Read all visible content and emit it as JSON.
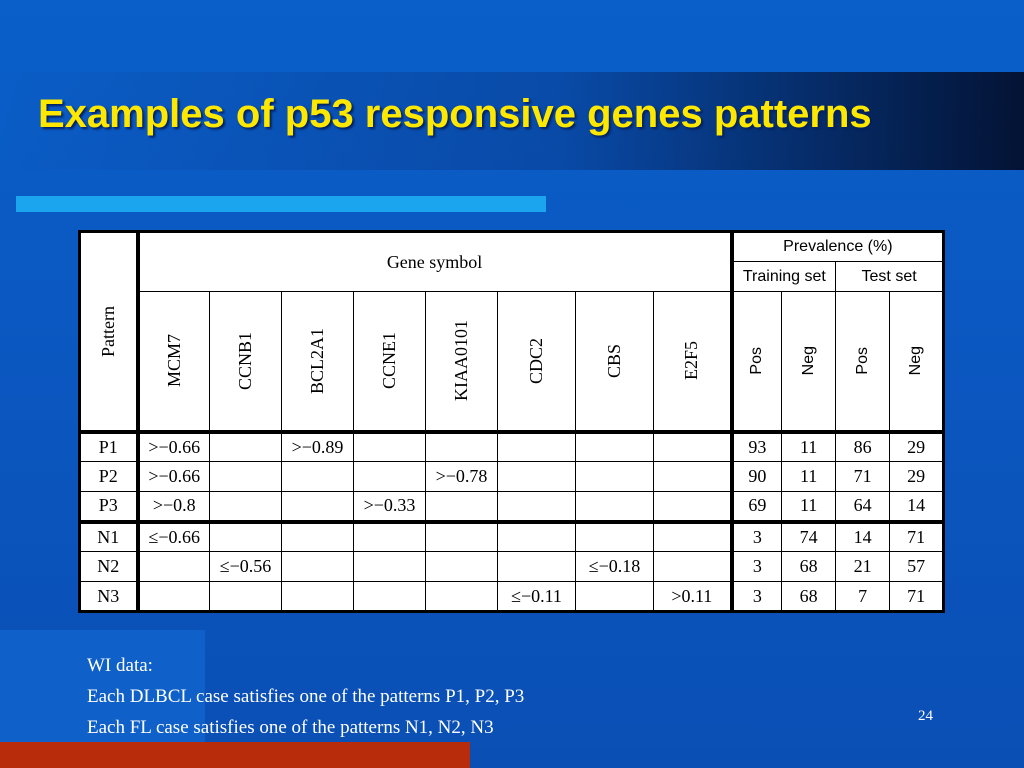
{
  "slide": {
    "title": "Examples of p53 responsive genes patterns",
    "number": "24",
    "colors": {
      "title": "#ffe800",
      "background": "#0a5fc8",
      "accent_bar": "#1aa5ee",
      "bottom_bar": "#b82c0c"
    }
  },
  "table": {
    "pattern_header": "Pattern",
    "gene_symbol_header": "Gene symbol",
    "prevalence_header": "Prevalence (%)",
    "training_set_header": "Training set",
    "test_set_header": "Test set",
    "genes": [
      "MCM7",
      "CCNB1",
      "BCL2A1",
      "CCNE1",
      "KIAA0101",
      "CDC2",
      "CBS",
      "E2F5"
    ],
    "prevalence_cols": [
      "Pos",
      "Neg",
      "Pos",
      "Neg"
    ],
    "rows": [
      {
        "pattern": "P1",
        "genes": [
          ">−0.66",
          "",
          ">−0.89",
          "",
          "",
          "",
          "",
          ""
        ],
        "prev": [
          "93",
          "11",
          "86",
          "29"
        ]
      },
      {
        "pattern": "P2",
        "genes": [
          ">−0.66",
          "",
          "",
          "",
          ">−0.78",
          "",
          "",
          ""
        ],
        "prev": [
          "90",
          "11",
          "71",
          "29"
        ]
      },
      {
        "pattern": "P3",
        "genes": [
          ">−0.8",
          "",
          "",
          ">−0.33",
          "",
          "",
          "",
          ""
        ],
        "prev": [
          "69",
          "11",
          "64",
          "14"
        ]
      },
      {
        "pattern": "N1",
        "genes": [
          "≤−0.66",
          "",
          "",
          "",
          "",
          "",
          "",
          ""
        ],
        "prev": [
          "3",
          "74",
          "14",
          "71"
        ]
      },
      {
        "pattern": "N2",
        "genes": [
          "",
          "≤−0.56",
          "",
          "",
          "",
          "",
          "≤−0.18",
          ""
        ],
        "prev": [
          "3",
          "68",
          "21",
          "57"
        ]
      },
      {
        "pattern": "N3",
        "genes": [
          "",
          "",
          "",
          "",
          "",
          "≤−0.11",
          "",
          ">0.11"
        ],
        "prev": [
          "3",
          "68",
          "7",
          "71"
        ]
      }
    ]
  },
  "notes": [
    "WI data:",
    "Each DLBCL case satisfies one of the patterns P1, P2, P3",
    "Each FL case satisfies one of the patterns N1, N2, N3"
  ]
}
